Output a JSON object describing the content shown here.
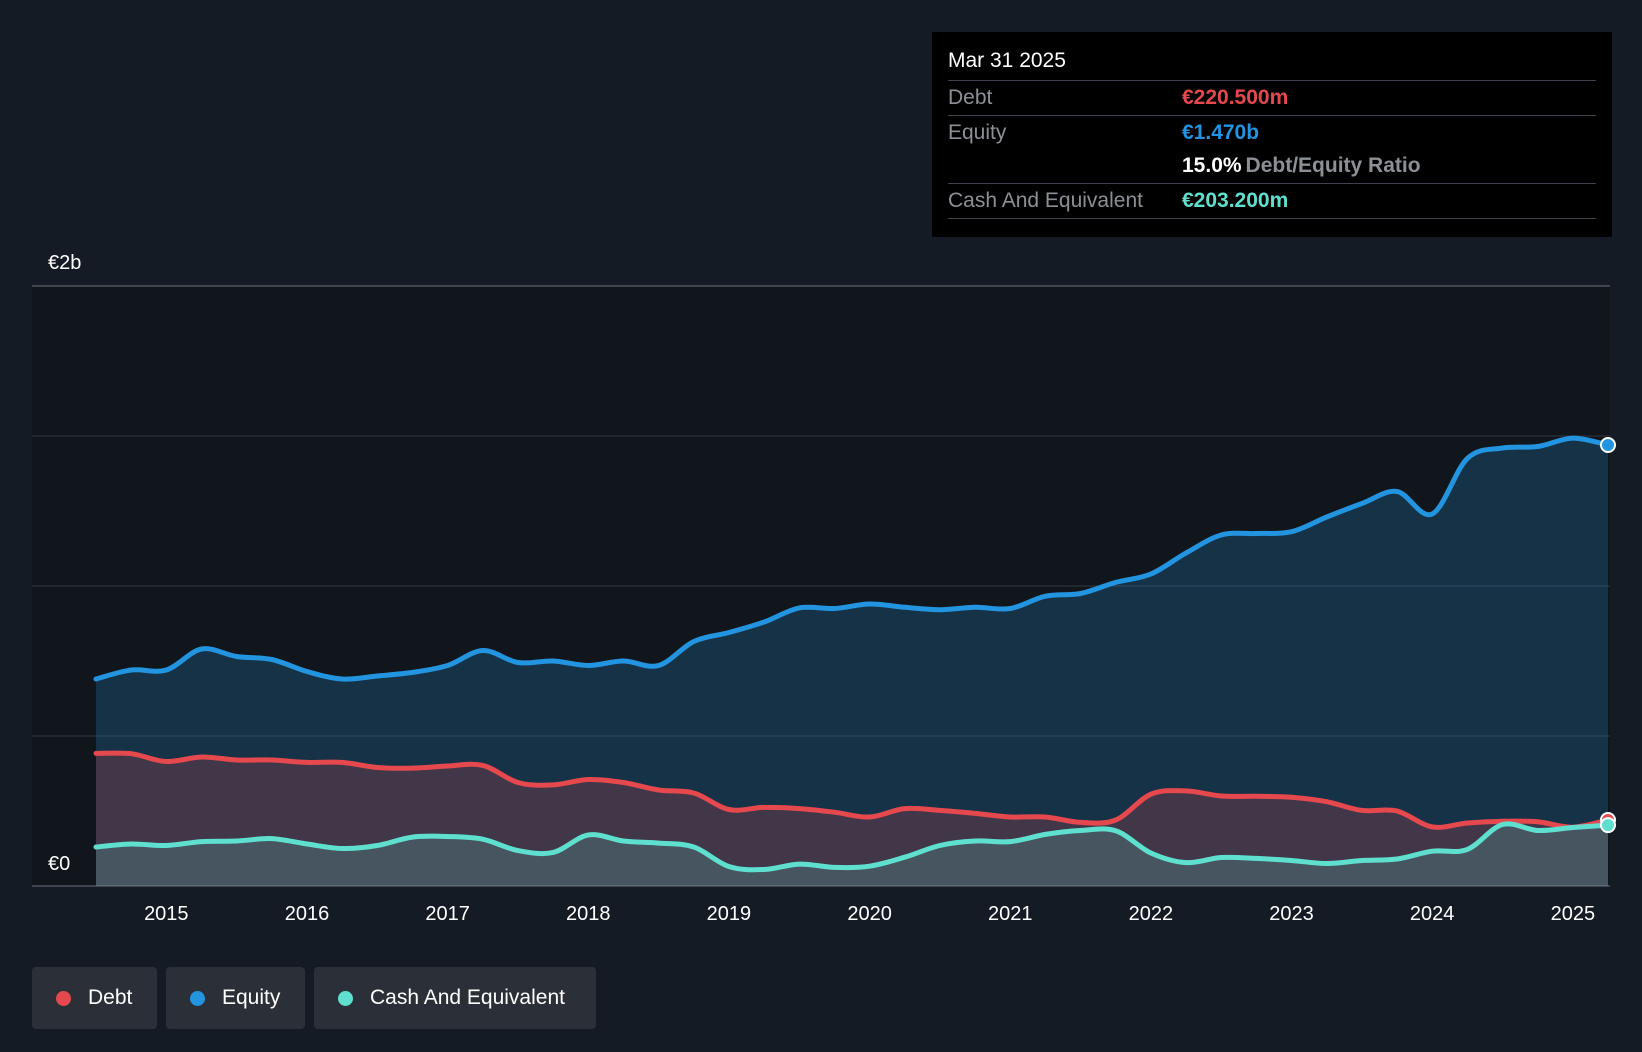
{
  "tooltip": {
    "date": "Mar 31 2025",
    "debt_label": "Debt",
    "debt_value": "€220.500m",
    "equity_label": "Equity",
    "equity_value": "€1.470b",
    "ratio_value": "15.0%",
    "ratio_label": "Debt/Equity Ratio",
    "cash_label": "Cash And Equivalent",
    "cash_value": "€203.200m"
  },
  "legend": [
    {
      "label": "Debt",
      "color": "#e5484d"
    },
    {
      "label": "Equity",
      "color": "#2394df"
    },
    {
      "label": "Cash And Equivalent",
      "color": "#5fe0cf"
    }
  ],
  "colors": {
    "debt": "#e5484d",
    "equity": "#2394df",
    "cash": "#5fe0cf",
    "background": "#151b24",
    "grid": "#2c323b"
  },
  "chart_data": {
    "type": "area",
    "title": "",
    "xlabel": "",
    "ylabel": "",
    "y_top_label": "€2b",
    "y_bottom_label": "€0",
    "ylim": [
      0,
      2000
    ],
    "y_unit": "€m",
    "gridlines": [
      500,
      1000,
      1500
    ],
    "x_ticks": [
      2015,
      2016,
      2017,
      2018,
      2019,
      2020,
      2021,
      2022,
      2023,
      2024,
      2025
    ],
    "x_range": [
      2014.5,
      2025.25
    ],
    "x": [
      2014.5,
      2014.75,
      2015.0,
      2015.25,
      2015.5,
      2015.75,
      2016.0,
      2016.25,
      2016.5,
      2016.75,
      2017.0,
      2017.25,
      2017.5,
      2017.75,
      2018.0,
      2018.25,
      2018.5,
      2018.75,
      2019.0,
      2019.25,
      2019.5,
      2019.75,
      2020.0,
      2020.25,
      2020.5,
      2020.75,
      2021.0,
      2021.25,
      2021.5,
      2021.75,
      2022.0,
      2022.25,
      2022.5,
      2022.75,
      2023.0,
      2023.25,
      2023.5,
      2023.75,
      2024.0,
      2024.25,
      2024.5,
      2024.75,
      2025.0,
      2025.25
    ],
    "series": [
      {
        "name": "Equity",
        "values": [
          690,
          720,
          720,
          790,
          765,
          755,
          715,
          690,
          700,
          712,
          735,
          785,
          745,
          750,
          735,
          750,
          735,
          815,
          845,
          880,
          927,
          925,
          940,
          929,
          921,
          929,
          925,
          966,
          975,
          1012,
          1040,
          1110,
          1170,
          1175,
          1181,
          1230,
          1275,
          1315,
          1240,
          1425,
          1460,
          1465,
          1493,
          1470
        ]
      },
      {
        "name": "Debt",
        "values": [
          442,
          441,
          415,
          430,
          420,
          420,
          412,
          412,
          395,
          393,
          400,
          402,
          345,
          337,
          355,
          345,
          320,
          310,
          255,
          262,
          258,
          246,
          230,
          258,
          252,
          242,
          230,
          230,
          212,
          220,
          306,
          317,
          300,
          299,
          296,
          281,
          252,
          250,
          197,
          210,
          216,
          214,
          196,
          220
        ]
      },
      {
        "name": "Cash And Equivalent",
        "values": [
          130,
          140,
          135,
          148,
          150,
          158,
          140,
          125,
          135,
          163,
          165,
          156,
          118,
          112,
          170,
          150,
          143,
          130,
          65,
          55,
          73,
          62,
          66,
          96,
          135,
          150,
          148,
          172,
          185,
          184,
          110,
          78,
          95,
          92,
          85,
          75,
          85,
          90,
          116,
          122,
          205,
          185,
          195,
          203
        ]
      }
    ]
  }
}
